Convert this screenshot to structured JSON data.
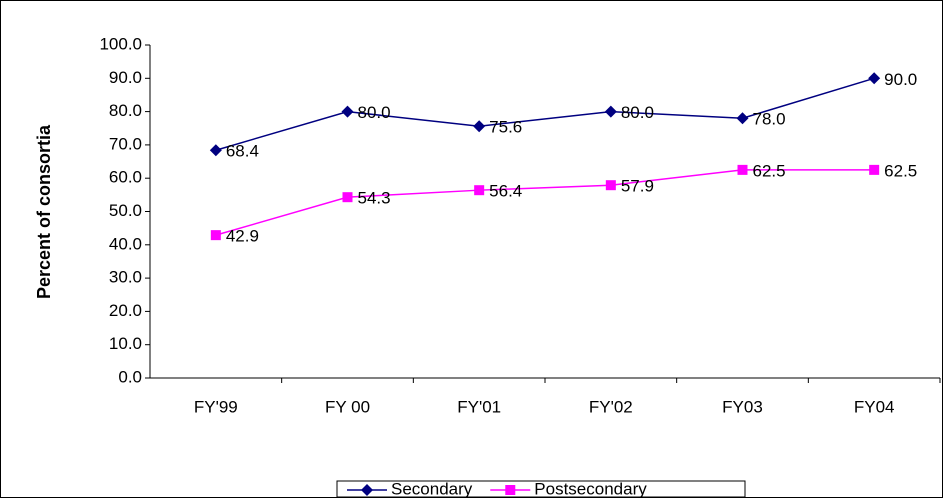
{
  "chart_data": {
    "type": "line",
    "y_label": "Percent of consortia",
    "categories": [
      "FY'99",
      "FY 00",
      "FY'01",
      "FY'02",
      "FY03",
      "FY04"
    ],
    "series": [
      {
        "name": "Secondary",
        "color": "#000080",
        "marker": "diamond",
        "values": [
          68.4,
          80,
          75.6,
          80,
          78,
          90
        ],
        "value_labels": [
          "68.4",
          "80.0",
          "75.6",
          "80.0",
          "78.0",
          "90.0"
        ]
      },
      {
        "name": "Postsecondary",
        "color": "#ff00ff",
        "marker": "square",
        "values": [
          42.9,
          54.3,
          56.4,
          57.9,
          62.5,
          62.5
        ],
        "value_labels": [
          "42.9",
          "54.3",
          "56.4",
          "57.9",
          "62.5",
          "62.5"
        ]
      }
    ],
    "ylim": [
      0,
      100
    ],
    "yticks": [
      {
        "value": 0,
        "label": "0.0"
      },
      {
        "value": 10,
        "label": "10.0"
      },
      {
        "value": 20,
        "label": "20.0"
      },
      {
        "value": 30,
        "label": "30.0"
      },
      {
        "value": 40,
        "label": "40.0"
      },
      {
        "value": 50,
        "label": "50.0"
      },
      {
        "value": 60,
        "label": "60.0"
      },
      {
        "value": 70,
        "label": "70.0"
      },
      {
        "value": 80,
        "label": "80.0"
      },
      {
        "value": 90,
        "label": "90.0"
      },
      {
        "value": 100,
        "label": "100.0"
      }
    ],
    "legend": "bottom"
  }
}
